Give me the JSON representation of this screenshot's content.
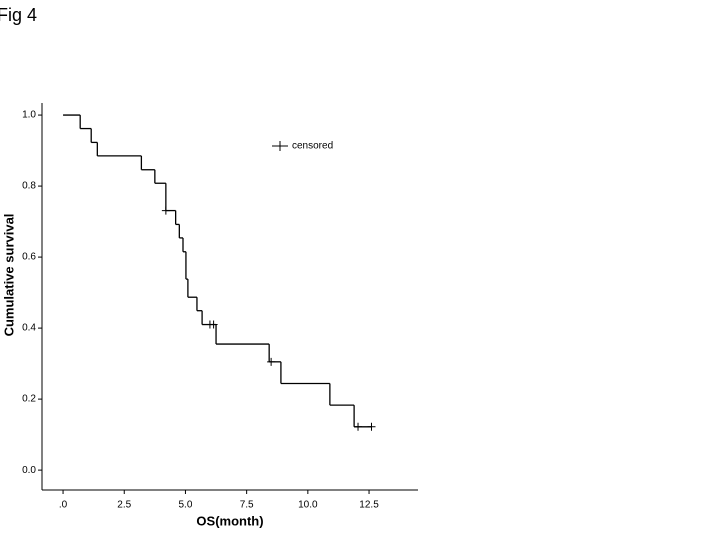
{
  "figure_label": "Fig 4",
  "chart_data": {
    "type": "survival",
    "xlabel": "OS(month)",
    "ylabel": "Cumulative survival",
    "xlim": [
      -0.86,
      14.5
    ],
    "ylim": [
      -0.056,
      1.034
    ],
    "xticks": [
      {
        "value": 0,
        "label": ".0"
      },
      2.5,
      {
        "value": 5,
        "label": "5.0"
      },
      7.5,
      {
        "value": 10,
        "label": "10.0"
      },
      12.5
    ],
    "yticks": [
      {
        "value": 0,
        "label": "0.0"
      },
      0.2,
      0.4,
      0.6,
      0.8,
      {
        "value": 1,
        "label": "1.0"
      }
    ],
    "grid": false,
    "legend": "upper right",
    "series": [
      {
        "name": "censored",
        "color": "#000000",
        "x": [
          0,
          0.7,
          1.15,
          1.4,
          3.2,
          3.75,
          4.2,
          4.6,
          4.75,
          4.9,
          5.02,
          5.1,
          5.47,
          5.68,
          6.25,
          8.42,
          8.9,
          10.9,
          11.89
        ],
        "values": [
          1.0,
          0.962,
          0.923,
          0.885,
          0.846,
          0.808,
          0.731,
          0.692,
          0.654,
          0.615,
          0.538,
          0.487,
          0.449,
          0.41,
          0.355,
          0.305,
          0.244,
          0.183,
          0.122
        ],
        "censored_x": [
          4.2,
          6.0,
          6.15,
          8.5,
          12.05,
          12.6
        ],
        "censored_values": [
          0.731,
          0.41,
          0.41,
          0.305,
          0.122,
          0.122
        ]
      }
    ]
  }
}
